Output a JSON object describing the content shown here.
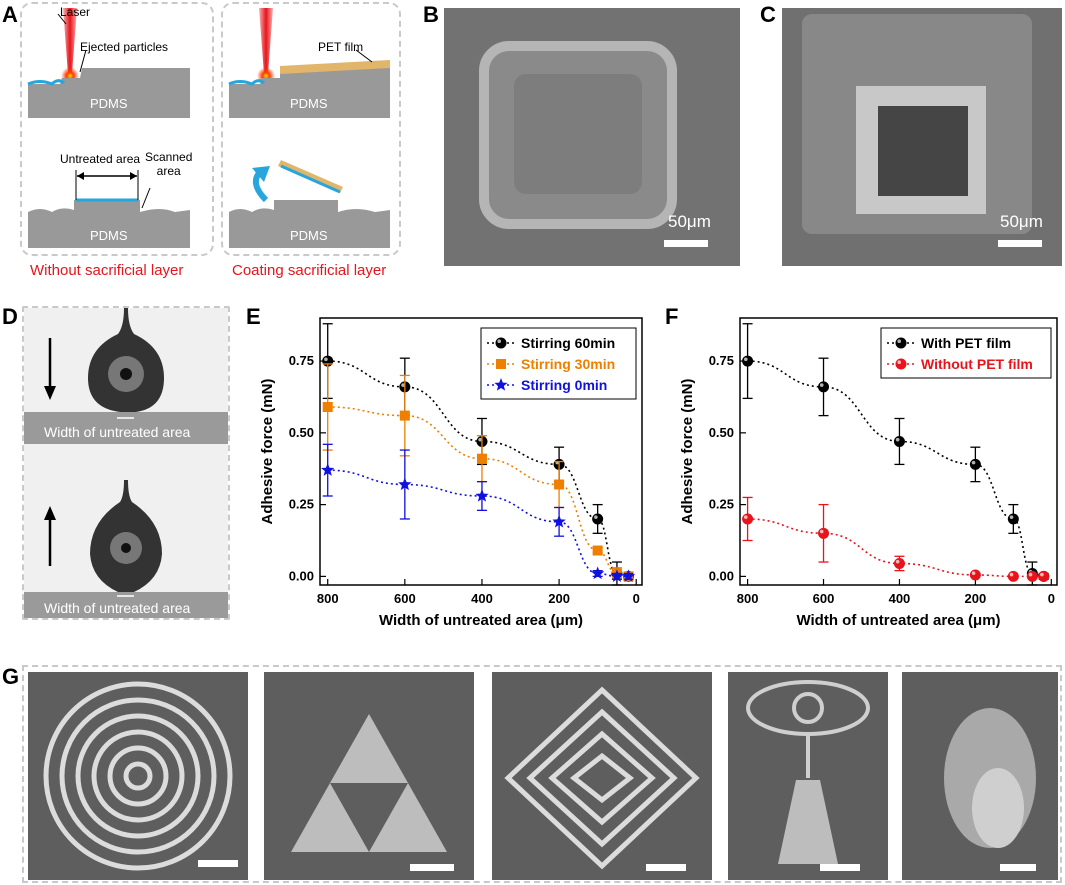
{
  "panels": {
    "A": "A",
    "B": "B",
    "C": "C",
    "D": "D",
    "E": "E",
    "F": "F",
    "G": "G"
  },
  "panel_a": {
    "laser_label": "Laser",
    "ejected_label": "Ejected particles",
    "pet_label": "PET film",
    "pdms": "PDMS",
    "untreated_label": "Untreated area",
    "scanned_label": "Scanned\narea",
    "caption_left": "Without sacrificial layer",
    "caption_right": "Coating sacrificial layer"
  },
  "panel_b": {
    "scale": "50μm"
  },
  "panel_c": {
    "scale": "50μm"
  },
  "panel_d": {
    "label_top": "Width of untreated area",
    "label_bottom": "Width of untreated area"
  },
  "colors": {
    "black_series": "#000000",
    "orange_series": "#ee7f00",
    "blue_series": "#1010e0",
    "red_series": "#e8141b",
    "caption_red": "#e8141b"
  },
  "chart_data": [
    {
      "id": "E",
      "type": "line",
      "xlabel": "Width of untreated area (μm)",
      "ylabel": "Adhesive force (mN)",
      "xlim": [
        820,
        -15
      ],
      "ylim": [
        -0.03,
        0.9
      ],
      "xticks": [
        800,
        600,
        400,
        200,
        0
      ],
      "yticks": [
        "0.00",
        "0.25",
        "0.50",
        "0.75"
      ],
      "legend_position": "top-right",
      "x": [
        800,
        600,
        400,
        200,
        100,
        50,
        20
      ],
      "series": [
        {
          "name": "Stirring 60min",
          "marker": "sphere",
          "color": "#000000",
          "values": [
            0.75,
            0.66,
            0.47,
            0.39,
            0.2,
            0.01,
            0.0
          ],
          "errors": [
            0.13,
            0.1,
            0.08,
            0.06,
            0.05,
            0.04,
            0.01
          ]
        },
        {
          "name": "Stirring 30min",
          "marker": "square",
          "color": "#ee7f00",
          "values": [
            0.59,
            0.56,
            0.41,
            0.32,
            0.09,
            0.01,
            0.0
          ],
          "errors": [
            0.15,
            0.14,
            0.08,
            0.08,
            0.01,
            0.02,
            0.01
          ]
        },
        {
          "name": "Stirring 0min",
          "marker": "star",
          "color": "#1010e0",
          "values": [
            0.37,
            0.32,
            0.28,
            0.19,
            0.01,
            0.0,
            0.0
          ],
          "errors": [
            0.09,
            0.12,
            0.05,
            0.05,
            0.01,
            0.01,
            0.01
          ]
        }
      ]
    },
    {
      "id": "F",
      "type": "line",
      "xlabel": "Width of untreated area (μm)",
      "ylabel": "Adhesive force (mN)",
      "xlim": [
        820,
        -15
      ],
      "ylim": [
        -0.03,
        0.9
      ],
      "xticks": [
        800,
        600,
        400,
        200,
        0
      ],
      "yticks": [
        "0.00",
        "0.25",
        "0.50",
        "0.75"
      ],
      "legend_position": "top-right",
      "x": [
        800,
        600,
        400,
        200,
        100,
        50,
        20
      ],
      "series": [
        {
          "name": "With PET film",
          "marker": "sphere",
          "color": "#000000",
          "values": [
            0.75,
            0.66,
            0.47,
            0.39,
            0.2,
            0.01,
            0.0
          ],
          "errors": [
            0.13,
            0.1,
            0.08,
            0.06,
            0.05,
            0.04,
            0.01
          ]
        },
        {
          "name": "Without PET film",
          "marker": "sphere",
          "color": "#e8141b",
          "values": [
            0.2,
            0.15,
            0.045,
            0.005,
            0.0,
            0.0,
            0.0
          ],
          "errors": [
            0.075,
            0.1,
            0.025,
            0.005,
            0.003,
            0.003,
            0.003
          ]
        }
      ]
    }
  ]
}
